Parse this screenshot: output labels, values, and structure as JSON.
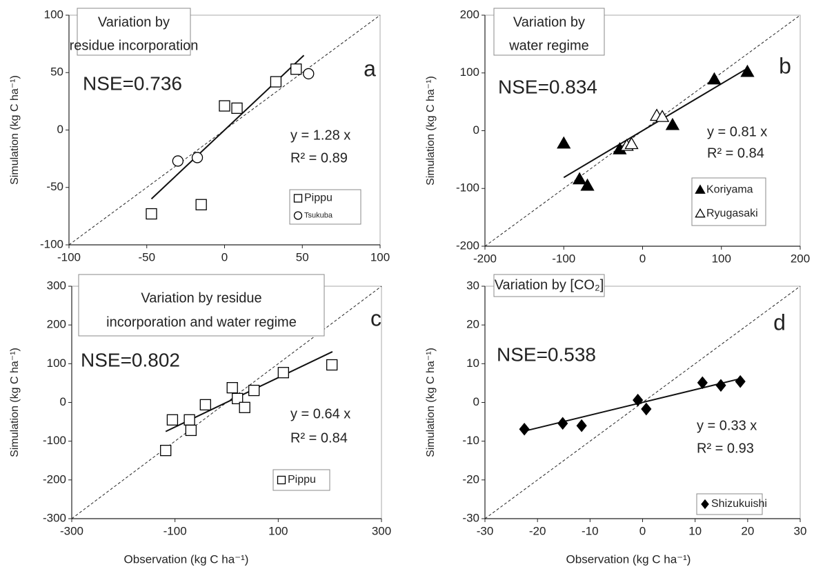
{
  "chart_data": [
    {
      "type": "scatter",
      "label": "a",
      "title": [
        "Variation by",
        "residue incorporation"
      ],
      "nse": "NSE=0.736",
      "equation": "y = 1.28 x",
      "r2": "R² = 0.89",
      "ylabel": "Simulation (kg C ha⁻¹)",
      "xlim": [
        -100,
        100
      ],
      "ylim": [
        -100,
        100
      ],
      "xticks": [
        -100,
        -50,
        0,
        50,
        100
      ],
      "yticks": [
        -100,
        -50,
        0,
        50,
        100
      ],
      "series": [
        {
          "name": "Pippu",
          "color": "#000000",
          "marker": "square",
          "filled": false,
          "x": [
            -47,
            -15,
            0,
            8,
            33,
            46
          ],
          "values": [
            -73,
            -65,
            21,
            19,
            42,
            53
          ]
        },
        {
          "name": "Tsukuba",
          "color": "#000000",
          "marker": "circle",
          "filled": false,
          "x": [
            -30,
            -17.5,
            54
          ],
          "values": [
            -27,
            -24,
            49
          ]
        }
      ],
      "trendline": {
        "x": [
          -47,
          51
        ],
        "y": [
          -60,
          65
        ]
      }
    },
    {
      "type": "scatter",
      "label": "b",
      "title": [
        "Variation by",
        "water regime"
      ],
      "nse": "NSE=0.834",
      "equation": "y = 0.81 x",
      "r2": "R² = 0.84",
      "ylabel": "Simulation (kg C ha⁻¹)",
      "xlim": [
        -200,
        200
      ],
      "ylim": [
        -200,
        200
      ],
      "xticks": [
        -200,
        -100,
        0,
        100,
        200
      ],
      "yticks": [
        -200,
        -100,
        0,
        100,
        200
      ],
      "series": [
        {
          "name": "Koriyama",
          "color": "#000000",
          "marker": "triangle",
          "filled": true,
          "x": [
            -100,
            -80,
            -70,
            -29,
            38,
            91,
            133
          ],
          "values": [
            -22,
            -84,
            -95,
            -32,
            10,
            89,
            102
          ]
        },
        {
          "name": "Ryugasaki",
          "color": "#000000",
          "marker": "triangle",
          "filled": false,
          "x": [
            -20,
            -14,
            18,
            25
          ],
          "values": [
            -26,
            -23,
            26,
            24
          ]
        }
      ],
      "trendline": {
        "x": [
          -100,
          133
        ],
        "y": [
          -81,
          108
        ]
      }
    },
    {
      "type": "scatter",
      "label": "c",
      "title": [
        "Variation by residue",
        "incorporation and water regime"
      ],
      "nse": "NSE=0.802",
      "equation": "y = 0.64 x",
      "r2": "R² = 0.84",
      "ylabel": "Simulation (kg C ha⁻¹)",
      "xlabel": "Observation (kg C ha⁻¹)",
      "xlim": [
        -300,
        300
      ],
      "ylim": [
        -300,
        300
      ],
      "xticks": [
        -300,
        -100,
        100,
        300
      ],
      "yticks": [
        -300,
        -200,
        -100,
        0,
        100,
        200,
        300
      ],
      "series": [
        {
          "name": "Pippu",
          "color": "#000000",
          "marker": "square",
          "filled": false,
          "x": [
            -118,
            -105,
            -72,
            -69,
            -41,
            11,
            21,
            35,
            53,
            110,
            204
          ],
          "values": [
            -124,
            -45,
            -45,
            -72,
            -6,
            38,
            10,
            -13,
            31,
            77,
            97
          ]
        }
      ],
      "trendline": {
        "x": [
          -118,
          205
        ],
        "y": [
          -75,
          131
        ]
      }
    },
    {
      "type": "scatter",
      "label": "d",
      "title": [
        "Variation by [CO₂]"
      ],
      "nse": "NSE=0.538",
      "equation": "y = 0.33 x",
      "r2": "R² = 0.93",
      "ylabel": "Simulation (kg C ha⁻¹)",
      "xlabel": "Observation (kg C ha⁻¹)",
      "xlim": [
        -30,
        30
      ],
      "ylim": [
        -30,
        30
      ],
      "xticks": [
        -30,
        -20,
        -10,
        0,
        10,
        20,
        30
      ],
      "yticks": [
        -30,
        -20,
        -10,
        0,
        10,
        20,
        30
      ],
      "series": [
        {
          "name": "Shizukuishi",
          "color": "#000000",
          "marker": "diamond",
          "filled": true,
          "x": [
            -22.5,
            -15.2,
            -11.6,
            -0.9,
            0.7,
            11.4,
            14.9,
            18.6
          ],
          "values": [
            -6.9,
            -5.4,
            -6.0,
            0.6,
            -1.7,
            5.1,
            4.4,
            5.4
          ]
        }
      ],
      "trendline": {
        "x": [
          -22.5,
          18.8
        ],
        "y": [
          -7.4,
          6.2
        ]
      }
    }
  ]
}
